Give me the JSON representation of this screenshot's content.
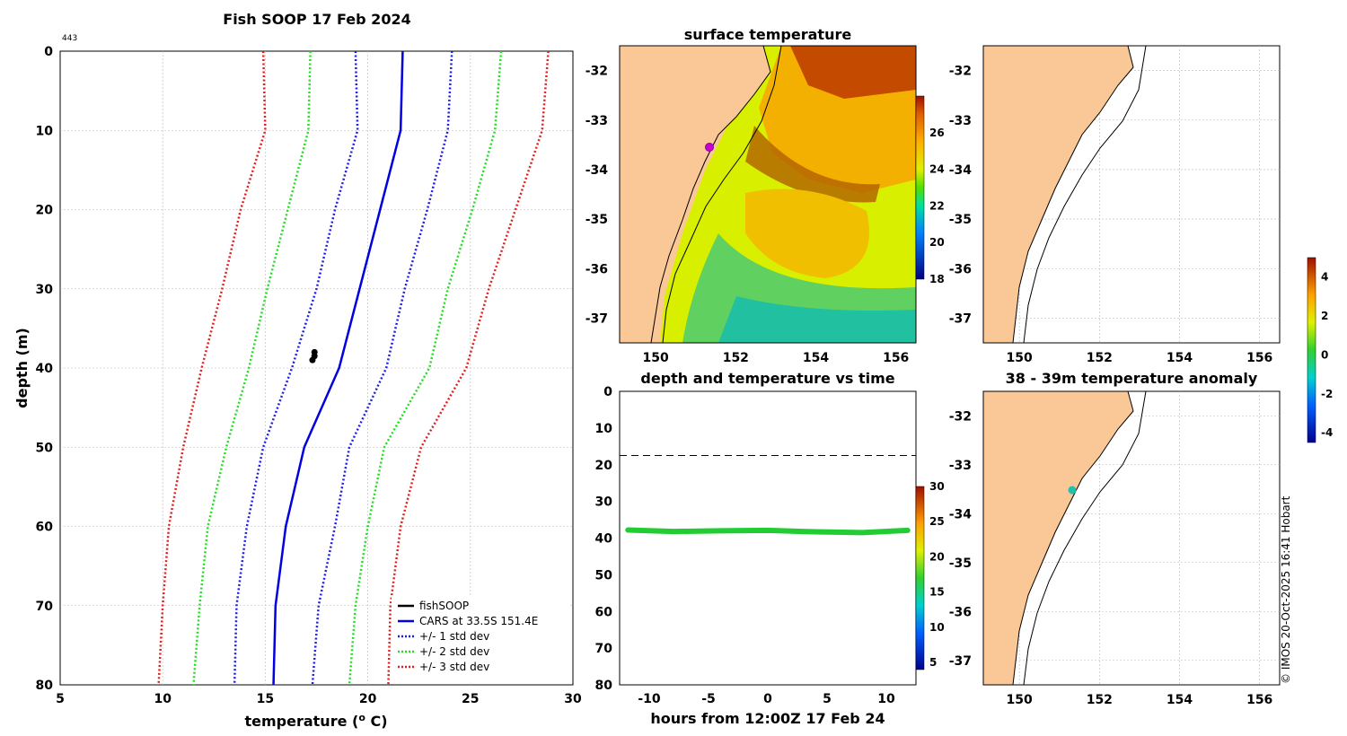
{
  "profile": {
    "title": "Fish SOOP 17 Feb 2024",
    "corner_tag": "443",
    "xlabel": "temperature (",
    "xlabel_sup": "o",
    "xlabel_end": " C)",
    "ylabel": "depth (m)",
    "legend": [
      "fishSOOP",
      "CARS at 33.5S 151.4E",
      "+/- 1 std dev",
      "+/- 2 std dev",
      "+/- 3 std dev"
    ]
  },
  "sst_map": {
    "title": "surface temperature"
  },
  "timeseries": {
    "title": "depth and temperature vs time",
    "xlabel": "hours from 12:00Z 17 Feb 24"
  },
  "anomaly_map": {
    "title": "38 - 39m temperature anomaly"
  },
  "footer": {
    "credit": "© IMOS 20-Oct-2025 16:41 Hobart"
  },
  "colors": {
    "land": "#f9c896",
    "cars": "#0000e0",
    "std1": "#1e1ee6",
    "std2": "#22dd22",
    "std3": "#e02020",
    "fish": "#000000",
    "marker": "#cc00cc",
    "anom_marker": "#20c0b0",
    "ts_line": "#22cc33",
    "grid": "#bbbbbb"
  },
  "chart_data": [
    {
      "id": "profile",
      "type": "line",
      "title": "Fish SOOP 17 Feb 2024",
      "xlabel": "temperature (o C)",
      "ylabel": "depth (m)",
      "xlim": [
        5,
        30
      ],
      "ylim": [
        0,
        80
      ],
      "y_reversed": true,
      "xticks": [
        5,
        10,
        15,
        20,
        25,
        30
      ],
      "yticks": [
        0,
        10,
        20,
        30,
        40,
        50,
        60,
        70,
        80
      ],
      "depths": [
        0,
        10,
        20,
        30,
        40,
        50,
        60,
        70,
        80
      ],
      "series": [
        {
          "name": "CARS at 33.5S 151.4E",
          "style": "solid",
          "color": "#0000e0",
          "values": [
            21.7,
            21.6,
            20.6,
            19.6,
            18.6,
            16.9,
            16.0,
            15.5,
            15.4
          ]
        },
        {
          "name": "+/- 1 std dev (+)",
          "style": "dotted",
          "color": "#1e1ee6",
          "values": [
            24.1,
            23.9,
            22.9,
            21.8,
            20.9,
            19.1,
            18.4,
            17.6,
            17.3
          ]
        },
        {
          "name": "+/- 1 std dev (-)",
          "style": "dotted",
          "color": "#1e1ee6",
          "values": [
            19.4,
            19.5,
            18.4,
            17.5,
            16.3,
            14.9,
            14.1,
            13.6,
            13.5
          ]
        },
        {
          "name": "+/- 2 std dev (+)",
          "style": "dotted",
          "color": "#22dd22",
          "values": [
            26.5,
            26.2,
            25.1,
            23.9,
            23.0,
            20.8,
            20.0,
            19.4,
            19.1
          ]
        },
        {
          "name": "+/- 2 std dev (-)",
          "style": "dotted",
          "color": "#22dd22",
          "values": [
            17.2,
            17.1,
            16.1,
            15.1,
            14.2,
            13.1,
            12.2,
            11.8,
            11.5
          ]
        },
        {
          "name": "+/- 3 std dev (+)",
          "style": "dotted",
          "color": "#e02020",
          "values": [
            28.8,
            28.5,
            27.2,
            25.9,
            24.8,
            22.6,
            21.6,
            21.1,
            21.0
          ]
        },
        {
          "name": "+/- 3 std dev (-)",
          "style": "dotted",
          "color": "#e02020",
          "values": [
            14.9,
            15.0,
            13.8,
            12.9,
            11.9,
            11.0,
            10.3,
            10.0,
            9.8
          ]
        }
      ],
      "fishsoop": {
        "name": "fishSOOP",
        "temperature": [
          17.4,
          17.4,
          17.3
        ],
        "depth": [
          38.0,
          38.5,
          39.0
        ]
      }
    },
    {
      "id": "sst_map",
      "type": "heatmap",
      "title": "surface temperature",
      "xlim": [
        149.1,
        156.5
      ],
      "ylim": [
        -37.5,
        -31.5
      ],
      "xticks": [
        150,
        152,
        154,
        156
      ],
      "yticks": [
        -32,
        -33,
        -34,
        -35,
        -36,
        -37
      ],
      "colorbar": {
        "ticks": [
          18,
          20,
          22,
          24,
          26
        ],
        "range": [
          18,
          28
        ]
      },
      "marker": {
        "lon": 151.4,
        "lat": -33.5
      }
    },
    {
      "id": "timeseries",
      "type": "scatter",
      "title": "depth and temperature vs time",
      "xlabel": "hours from 12:00Z 17 Feb 24",
      "xlim": [
        -12.5,
        12.5
      ],
      "ylim": [
        0,
        80
      ],
      "y_reversed": true,
      "xticks": [
        -10,
        -5,
        0,
        5,
        10
      ],
      "yticks": [
        0,
        10,
        20,
        30,
        40,
        50,
        60,
        70,
        80
      ],
      "dashed_line_depth": 17.5,
      "x": [
        -11.8,
        -8,
        -4,
        0,
        4,
        8,
        11.8
      ],
      "y": [
        37.8,
        38.2,
        38.0,
        37.9,
        38.3,
        38.5,
        37.9
      ],
      "colorbar": {
        "ticks": [
          5,
          10,
          15,
          20,
          25,
          30
        ],
        "range": [
          4,
          30
        ]
      }
    },
    {
      "id": "coast_map",
      "type": "scatter",
      "xlim": [
        149.1,
        156.5
      ],
      "ylim": [
        -37.5,
        -31.5
      ],
      "xticks": [
        150,
        152,
        154,
        156
      ],
      "yticks": [
        -32,
        -33,
        -34,
        -35,
        -36,
        -37
      ]
    },
    {
      "id": "anomaly_map",
      "type": "scatter",
      "title": "38 - 39m temperature anomaly",
      "xlim": [
        149.1,
        156.5
      ],
      "ylim": [
        -37.5,
        -31.5
      ],
      "xticks": [
        150,
        152,
        154,
        156
      ],
      "yticks": [
        -32,
        -33,
        -34,
        -35,
        -36,
        -37
      ],
      "marker": {
        "lon": 151.4,
        "lat": -33.55
      },
      "colorbar": {
        "ticks": [
          -4,
          -2,
          0,
          2,
          4
        ],
        "range": [
          -4.5,
          5
        ]
      }
    }
  ]
}
